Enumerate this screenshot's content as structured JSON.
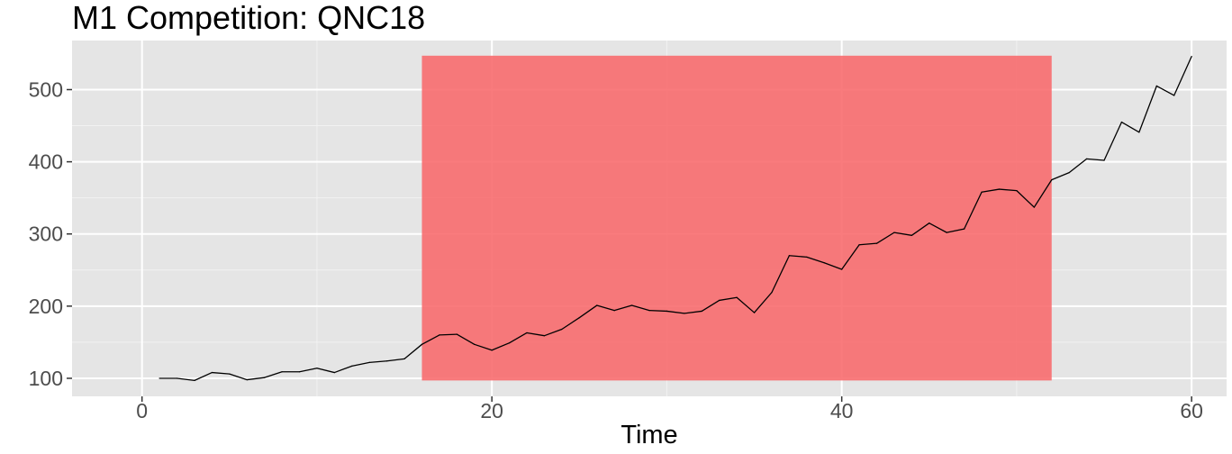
{
  "chart_data": {
    "type": "line",
    "title": "M1 Competition: QNC18",
    "xlabel": "Time",
    "ylabel": "",
    "xlim": [
      -4,
      62
    ],
    "ylim": [
      75,
      568
    ],
    "x_ticks": [
      0,
      20,
      40,
      60
    ],
    "y_ticks": [
      100,
      200,
      300,
      400,
      500
    ],
    "grid": true,
    "background_color": "#e5e5e5",
    "line_color": "#000000",
    "highlight": {
      "x_start": 16,
      "x_end": 52,
      "y_start": 97,
      "y_end": 547,
      "color": "#f8696b"
    },
    "series": [
      {
        "x": [
          1,
          2,
          3,
          4,
          5,
          6,
          7,
          8,
          9,
          10,
          11,
          12,
          13,
          14,
          15,
          16,
          17,
          18,
          19,
          20,
          21,
          22,
          23,
          24,
          25,
          26,
          27,
          28,
          29,
          30,
          31,
          32,
          33,
          34,
          35,
          36,
          37,
          38,
          39,
          40,
          41,
          42,
          43,
          44,
          45,
          46,
          47,
          48,
          49,
          50,
          51,
          52,
          53,
          54,
          55,
          56,
          57,
          58,
          59,
          60
        ],
        "values": [
          100,
          100,
          97,
          108,
          106,
          98,
          101,
          109,
          109,
          114,
          108,
          117,
          122,
          124,
          127,
          147,
          160,
          161,
          147,
          139,
          149,
          163,
          159,
          168,
          184,
          201,
          194,
          201,
          194,
          193,
          190,
          193,
          208,
          212,
          191,
          219,
          270,
          268,
          260,
          251,
          285,
          287,
          302,
          298,
          315,
          302,
          307,
          358,
          362,
          360,
          337,
          375,
          385,
          404,
          402,
          455,
          441,
          505,
          492,
          546
        ]
      }
    ]
  }
}
